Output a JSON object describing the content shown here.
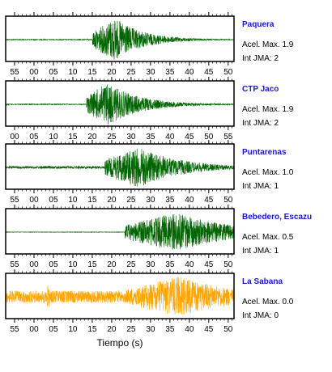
{
  "chart_data": {
    "type": "line",
    "x_unit": "s",
    "xlabel": "Tiempo (s)",
    "panels": [
      {
        "station": "Paquera",
        "accel_label": "Acel. Max. 1.9",
        "int_label": "Int JMA: 2",
        "color": "#006400",
        "tick_labels": [
          "55",
          "00",
          "05",
          "10",
          "15",
          "20",
          "25",
          "30",
          "35",
          "40",
          "45",
          "50"
        ],
        "envelope": {
          "noise": 0.02,
          "onset": 21.5,
          "peak_time": 27.0,
          "peak_amp": 1.0,
          "decay": 7
        }
      },
      {
        "station": "CTP Jaco",
        "accel_label": "Acel. Max. 1.9",
        "int_label": "Int JMA: 2",
        "color": "#006400",
        "tick_labels": [
          "00",
          "05",
          "10",
          "15",
          "20",
          "25",
          "30",
          "35",
          "40",
          "45",
          "50",
          "55"
        ],
        "envelope": {
          "noise": 0.02,
          "onset": 20.0,
          "peak_time": 25.0,
          "peak_amp": 1.0,
          "decay": 8
        }
      },
      {
        "station": "Puntarenas",
        "accel_label": "Acel. Max. 1.0",
        "int_label": "Int JMA: 1",
        "color": "#006400",
        "tick_labels": [
          "55",
          "00",
          "05",
          "10",
          "15",
          "20",
          "25",
          "30",
          "35",
          "40",
          "45",
          "50"
        ],
        "envelope": {
          "noise": 0.06,
          "onset": 24.5,
          "peak_time": 33.0,
          "peak_amp": 0.95,
          "decay": 10
        }
      },
      {
        "station": "Bebedero, Escazu",
        "accel_label": "Acel. Max. 0.5",
        "int_label": "Int JMA: 1",
        "color": "#006400",
        "tick_labels": [
          "55",
          "00",
          "05",
          "10",
          "15",
          "20",
          "25",
          "30",
          "35",
          "40",
          "45",
          "50"
        ],
        "envelope": {
          "noise": 0.01,
          "onset": 29.5,
          "peak_time": 42.0,
          "peak_amp": 0.9,
          "decay": 14
        }
      },
      {
        "station": "La Sabana",
        "accel_label": "Acel. Max. 0.0",
        "int_label": "Int JMA: 0",
        "color": "#ffa500",
        "tick_labels": [
          "55",
          "00",
          "05",
          "10",
          "15",
          "20",
          "25",
          "30",
          "35",
          "40",
          "45",
          "50"
        ],
        "envelope": {
          "noise": 0.28,
          "onset": 30.0,
          "peak_time": 43.0,
          "peak_amp": 0.95,
          "decay": 14,
          "spike_time": 10.5
        }
      }
    ]
  }
}
